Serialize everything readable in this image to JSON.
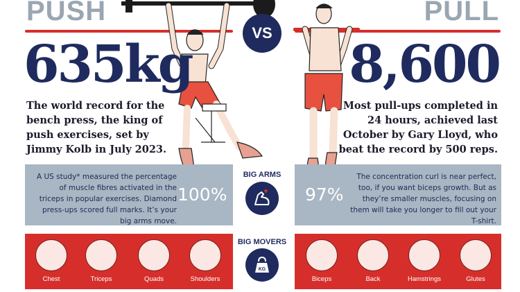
{
  "push": {
    "header": "PUSH",
    "stat": "635kg",
    "description": "The world record for the bench press, the king of push exercises, set by Jimmy Kolb in July 2023.",
    "study_text": "A US study* measured the percentage of muscle fibres activated in the triceps in popular exercises. Diamond press-ups scored full marks. It’s your big arms move.",
    "percent": "100%",
    "muscles": [
      "Chest",
      "Triceps",
      "Quads",
      "Shoulders"
    ]
  },
  "pull": {
    "header": "PULL",
    "stat": "8,600",
    "description": "Most pull-ups completed in 24 hours, achieved last October by Gary Lloyd, who beat the record by 500 reps.",
    "study_text": "The concentration curl is near perfect, too, if you want biceps growth. But as they’re smaller muscles, focusing on them will take you longer to fill out your T-shirt.",
    "percent": "97%",
    "muscles": [
      "Biceps",
      "Back",
      "Hamstrings",
      "Glutes"
    ]
  },
  "center": {
    "vs": "VS",
    "big_arms_label": "BIG ARMS",
    "big_movers_label": "BIG MOVERS",
    "kg_icon_text": "KG"
  },
  "colors": {
    "navy": "#1f2b5e",
    "red": "#d62f2b",
    "grey_panel": "#a9b6c3",
    "header_grey": "#9aa6b1"
  },
  "icons": [
    "flexed-arm-icon",
    "kettlebell-icon"
  ]
}
